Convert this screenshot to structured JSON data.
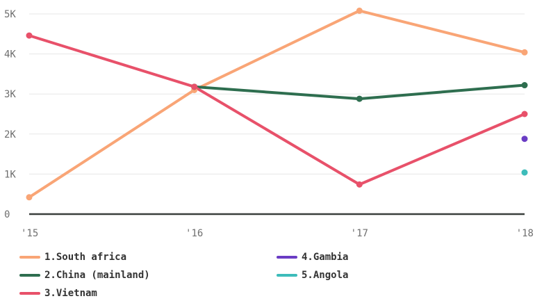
{
  "chart_data": {
    "type": "line",
    "categories": [
      "'15",
      "'16",
      "'17",
      "'18"
    ],
    "x_tick_labels": [
      "'15",
      "'16",
      "'17",
      "'18"
    ],
    "y_tick_labels": [
      "0",
      "1K",
      "2K",
      "3K",
      "4K",
      "5K"
    ],
    "ylim": [
      0,
      5000
    ],
    "grid": true,
    "legend_position": "bottom",
    "series": [
      {
        "name": "1.South africa",
        "color": "#f9a576",
        "values": [
          420,
          3100,
          5080,
          4040
        ]
      },
      {
        "name": "2.China (mainland)",
        "color": "#2e6e4f",
        "values": [
          null,
          3180,
          2880,
          3220
        ]
      },
      {
        "name": "3.Vietnam",
        "color": "#e8516a",
        "values": [
          4460,
          3180,
          740,
          2500
        ]
      },
      {
        "name": "4.Gambia",
        "color": "#6a3cc4",
        "values": [
          null,
          null,
          null,
          1880
        ]
      },
      {
        "name": "5.Angola",
        "color": "#3dbcba",
        "values": [
          null,
          null,
          null,
          1040
        ]
      }
    ]
  }
}
